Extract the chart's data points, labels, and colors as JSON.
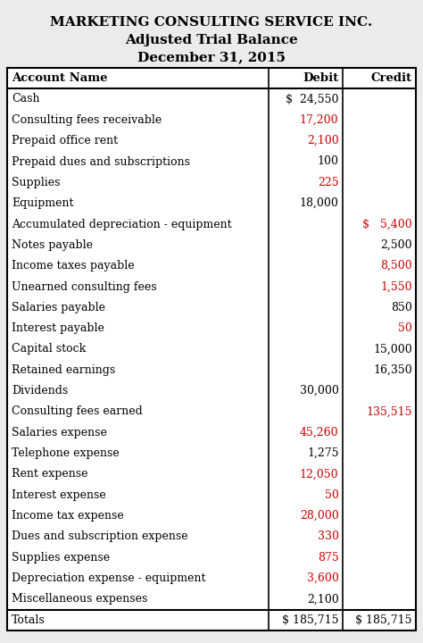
{
  "title1": "MARKETING CONSULTING SERVICE INC.",
  "title2": "Adjusted Trial Balance",
  "title3": "December 31, 2015",
  "col_header": [
    "Account Name",
    "Debit",
    "Credit"
  ],
  "rows": [
    {
      "name": "Cash",
      "debit": "$  24,550",
      "credit": "",
      "debit_color": "#000000",
      "credit_color": "#000000"
    },
    {
      "name": "Consulting fees receivable",
      "debit": "17,200",
      "credit": "",
      "debit_color": "#cc0000",
      "credit_color": "#000000"
    },
    {
      "name": "Prepaid office rent",
      "debit": "2,100",
      "credit": "",
      "debit_color": "#cc0000",
      "credit_color": "#000000"
    },
    {
      "name": "Prepaid dues and subscriptions",
      "debit": "100",
      "credit": "",
      "debit_color": "#000000",
      "credit_color": "#000000"
    },
    {
      "name": "Supplies",
      "debit": "225",
      "credit": "",
      "debit_color": "#cc0000",
      "credit_color": "#000000"
    },
    {
      "name": "Equipment",
      "debit": "18,000",
      "credit": "",
      "debit_color": "#000000",
      "credit_color": "#000000"
    },
    {
      "name": "Accumulated depreciation - equipment",
      "debit": "",
      "credit": "$   5,400",
      "debit_color": "#000000",
      "credit_color": "#cc0000"
    },
    {
      "name": "Notes payable",
      "debit": "",
      "credit": "2,500",
      "debit_color": "#000000",
      "credit_color": "#000000"
    },
    {
      "name": "Income taxes payable",
      "debit": "",
      "credit": "8,500",
      "debit_color": "#000000",
      "credit_color": "#cc0000"
    },
    {
      "name": "Unearned consulting fees",
      "debit": "",
      "credit": "1,550",
      "debit_color": "#000000",
      "credit_color": "#cc0000"
    },
    {
      "name": "Salaries payable",
      "debit": "",
      "credit": "850",
      "debit_color": "#000000",
      "credit_color": "#000000"
    },
    {
      "name": "Interest payable",
      "debit": "",
      "credit": "50",
      "debit_color": "#000000",
      "credit_color": "#cc0000"
    },
    {
      "name": "Capital stock",
      "debit": "",
      "credit": "15,000",
      "debit_color": "#000000",
      "credit_color": "#000000"
    },
    {
      "name": "Retained earnings",
      "debit": "",
      "credit": "16,350",
      "debit_color": "#000000",
      "credit_color": "#000000"
    },
    {
      "name": "Dividends",
      "debit": "30,000",
      "credit": "",
      "debit_color": "#000000",
      "credit_color": "#000000"
    },
    {
      "name": "Consulting fees earned",
      "debit": "",
      "credit": "135,515",
      "debit_color": "#000000",
      "credit_color": "#cc0000"
    },
    {
      "name": "Salaries expense",
      "debit": "45,260",
      "credit": "",
      "debit_color": "#cc0000",
      "credit_color": "#000000"
    },
    {
      "name": "Telephone expense",
      "debit": "1,275",
      "credit": "",
      "debit_color": "#000000",
      "credit_color": "#000000"
    },
    {
      "name": "Rent expense",
      "debit": "12,050",
      "credit": "",
      "debit_color": "#cc0000",
      "credit_color": "#000000"
    },
    {
      "name": "Interest expense",
      "debit": "50",
      "credit": "",
      "debit_color": "#cc0000",
      "credit_color": "#000000"
    },
    {
      "name": "Income tax expense",
      "debit": "28,000",
      "credit": "",
      "debit_color": "#cc0000",
      "credit_color": "#000000"
    },
    {
      "name": "Dues and subscription expense",
      "debit": "330",
      "credit": "",
      "debit_color": "#cc0000",
      "credit_color": "#000000"
    },
    {
      "name": "Supplies expense",
      "debit": "875",
      "credit": "",
      "debit_color": "#cc0000",
      "credit_color": "#000000"
    },
    {
      "name": "Depreciation expense - equipment",
      "debit": "3,600",
      "credit": "",
      "debit_color": "#cc0000",
      "credit_color": "#000000"
    },
    {
      "name": "Miscellaneous expenses",
      "debit": "2,100",
      "credit": "",
      "debit_color": "#000000",
      "credit_color": "#000000"
    }
  ],
  "totals_label": "Totals",
  "totals_debit": "$ 185,715",
  "totals_credit": "$ 185,715",
  "bg_color": "#ebebeb",
  "table_bg": "#ffffff",
  "title_fontsize": 11.0,
  "header_fontsize": 9.5,
  "row_fontsize": 9.0,
  "col_split1": 0.64,
  "col_split2": 0.82
}
